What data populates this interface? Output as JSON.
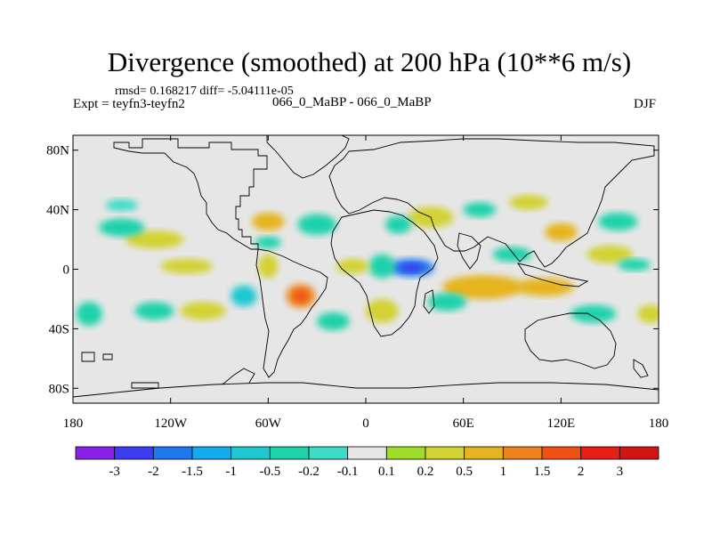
{
  "header": {
    "title": "Divergence (smoothed) at 200 hPa (10**6 m/s)",
    "stats": "rmsd= 0.168217 diff= -5.04111e-05",
    "experiment": "Expt = teyfn3-teyfn2",
    "center_label": "066_0_MaBP - 066_0_MaBP",
    "season": "DJF"
  },
  "colors": {
    "background_field": "#e6e6e6",
    "coastline": "#000000"
  },
  "chart_data": {
    "type": "contour-map",
    "variable": "Divergence (smoothed)",
    "level": "200 hPa",
    "units": "10**6 m/s",
    "xlim": [
      -180,
      180
    ],
    "ylim": [
      -90,
      90
    ],
    "x_ticks": [
      {
        "value": -180,
        "label": "180"
      },
      {
        "value": -120,
        "label": "120W"
      },
      {
        "value": -60,
        "label": "60W"
      },
      {
        "value": 0,
        "label": "0"
      },
      {
        "value": 60,
        "label": "60E"
      },
      {
        "value": 120,
        "label": "120E"
      },
      {
        "value": 180,
        "label": "180"
      }
    ],
    "y_ticks": [
      {
        "value": 80,
        "label": "80N"
      },
      {
        "value": 40,
        "label": "40N"
      },
      {
        "value": 0,
        "label": "0"
      },
      {
        "value": -40,
        "label": "40S"
      },
      {
        "value": -80,
        "label": "80S"
      }
    ],
    "colorbar": {
      "levels": [
        "-3",
        "-2",
        "-1.5",
        "-1",
        "-0.5",
        "-0.2",
        "-0.1",
        "0.1",
        "0.2",
        "0.5",
        "1",
        "1.5",
        "2",
        "3"
      ],
      "colors": [
        "#8a1fe8",
        "#3c3cf0",
        "#1e78f0",
        "#14aaf0",
        "#1ec8d2",
        "#1ed2aa",
        "#3cdcc8",
        "#e6e6e6",
        "#a0dc28",
        "#d2d232",
        "#e6b41e",
        "#f0821e",
        "#f05014",
        "#e61e14",
        "#d21414"
      ]
    },
    "features": [
      {
        "lon": 28,
        "lat": 1,
        "rlon": 14,
        "rlat": 6,
        "value": -2
      },
      {
        "lon": 28,
        "lat": 1,
        "rlon": 7,
        "rlat": 3,
        "value": -2.5
      },
      {
        "lon": 10,
        "lat": 2,
        "rlon": 8,
        "rlat": 8,
        "value": -0.5
      },
      {
        "lon": -40,
        "lat": -18,
        "rlon": 9,
        "rlat": 8,
        "value": 1.2
      },
      {
        "lon": -40,
        "lat": -18,
        "rlon": 4,
        "rlat": 4,
        "value": 1.7
      },
      {
        "lon": -8,
        "lat": 2,
        "rlon": 10,
        "rlat": 5,
        "value": 0.3
      },
      {
        "lon": -60,
        "lat": 2,
        "rlon": 6,
        "rlat": 8,
        "value": 0.4
      },
      {
        "lon": -75,
        "lat": -18,
        "rlon": 8,
        "rlat": 7,
        "value": -0.6
      },
      {
        "lon": 72,
        "lat": -12,
        "rlon": 25,
        "rlat": 8,
        "value": 0.7
      },
      {
        "lon": 110,
        "lat": -12,
        "rlon": 18,
        "rlat": 6,
        "value": 0.5
      },
      {
        "lon": 50,
        "lat": -22,
        "rlon": 12,
        "rlat": 6,
        "value": -0.4
      },
      {
        "lon": 90,
        "lat": 10,
        "rlon": 12,
        "rlat": 5,
        "value": -0.5
      },
      {
        "lon": 120,
        "lat": 25,
        "rlon": 10,
        "rlat": 6,
        "value": 0.5
      },
      {
        "lon": 150,
        "lat": 10,
        "rlon": 14,
        "rlat": 6,
        "value": 0.4
      },
      {
        "lon": 165,
        "lat": 3,
        "rlon": 10,
        "rlat": 4,
        "value": -0.4
      },
      {
        "lon": -130,
        "lat": 20,
        "rlon": 18,
        "rlat": 6,
        "value": 0.3
      },
      {
        "lon": -150,
        "lat": 28,
        "rlon": 14,
        "rlat": 6,
        "value": -0.4
      },
      {
        "lon": -110,
        "lat": 2,
        "rlon": 16,
        "rlat": 5,
        "value": 0.3
      },
      {
        "lon": -100,
        "lat": -28,
        "rlon": 14,
        "rlat": 6,
        "value": 0.3
      },
      {
        "lon": -130,
        "lat": -28,
        "rlon": 12,
        "rlat": 6,
        "value": -0.3
      },
      {
        "lon": -170,
        "lat": -30,
        "rlon": 8,
        "rlat": 8,
        "value": -0.4
      },
      {
        "lon": -60,
        "lat": 32,
        "rlon": 10,
        "rlat": 6,
        "value": 0.5
      },
      {
        "lon": -30,
        "lat": 30,
        "rlon": 12,
        "rlat": 7,
        "value": -0.3
      },
      {
        "lon": 40,
        "lat": 35,
        "rlon": 14,
        "rlat": 7,
        "value": 0.4
      },
      {
        "lon": 20,
        "lat": 30,
        "rlon": 8,
        "rlat": 6,
        "value": -0.3
      },
      {
        "lon": 70,
        "lat": 40,
        "rlon": 10,
        "rlat": 5,
        "value": -0.3
      },
      {
        "lon": 155,
        "lat": 32,
        "rlon": 12,
        "rlat": 6,
        "value": -0.3
      },
      {
        "lon": -150,
        "lat": 43,
        "rlon": 10,
        "rlat": 4,
        "value": -0.2
      },
      {
        "lon": 140,
        "lat": -30,
        "rlon": 14,
        "rlat": 6,
        "value": -0.3
      },
      {
        "lon": 10,
        "lat": -28,
        "rlon": 10,
        "rlat": 8,
        "value": 0.3
      },
      {
        "lon": -20,
        "lat": -35,
        "rlon": 10,
        "rlat": 6,
        "value": -0.3
      },
      {
        "lon": 175,
        "lat": -30,
        "rlon": 8,
        "rlat": 6,
        "value": 0.4
      },
      {
        "lon": -60,
        "lat": 18,
        "rlon": 8,
        "rlat": 4,
        "value": -0.3
      },
      {
        "lon": 100,
        "lat": 45,
        "rlon": 12,
        "rlat": 5,
        "value": 0.3
      }
    ]
  }
}
